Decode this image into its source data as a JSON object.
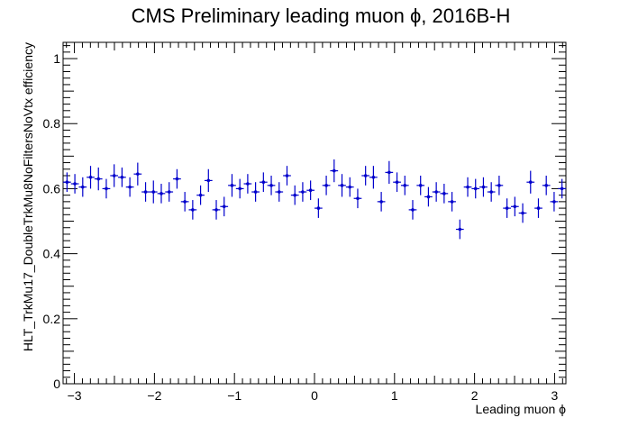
{
  "chart_data": {
    "type": "scatter",
    "title": "CMS Preliminary leading muon ϕ, 2016B-H",
    "xlabel": "Leading muon ϕ",
    "ylabel": "HLT_TrkMu17_DoubleTrkMu8NoFiltersNoVtx efficiency",
    "xlim": [
      -3.1416,
      3.1416
    ],
    "ylim": [
      0,
      1.05
    ],
    "x_ticks": [
      -3,
      -2,
      -1,
      0,
      1,
      2,
      3
    ],
    "x_tick_labels": [
      "−3",
      "−2",
      "−1",
      "0",
      "1",
      "2",
      "3"
    ],
    "y_ticks": [
      0,
      0.2,
      0.4,
      0.6,
      0.8,
      1
    ],
    "y_tick_labels": [
      "0",
      "0.2",
      "0.4",
      "0.6",
      "0.8",
      "1"
    ],
    "grid": false,
    "legend": "none",
    "marker_color": "#0000cc",
    "bin_half_width": 0.0491,
    "x": [
      -3.0925,
      -2.9943,
      -2.8961,
      -2.798,
      -2.6998,
      -2.6016,
      -2.5034,
      -2.4053,
      -2.3071,
      -2.2089,
      -2.1108,
      -2.0126,
      -1.9144,
      -1.8162,
      -1.7181,
      -1.6199,
      -1.5217,
      -1.4235,
      -1.3254,
      -1.2272,
      -1.129,
      -1.0308,
      -0.9327,
      -0.8345,
      -0.7363,
      -0.6381,
      -0.54,
      -0.4418,
      -0.3436,
      -0.2454,
      -0.1473,
      -0.0491,
      0.0491,
      0.1473,
      0.2454,
      0.3436,
      0.4418,
      0.54,
      0.6381,
      0.7363,
      0.8345,
      0.9327,
      1.0308,
      1.129,
      1.2272,
      1.3254,
      1.4235,
      1.5217,
      1.6199,
      1.7181,
      1.8162,
      1.9144,
      2.0126,
      2.1108,
      2.2089,
      2.3071,
      2.4053,
      2.5034,
      2.6016,
      2.6998,
      2.798,
      2.8961,
      2.9943,
      3.0925
    ],
    "y": [
      0.62,
      0.615,
      0.605,
      0.635,
      0.63,
      0.6,
      0.64,
      0.635,
      0.605,
      0.645,
      0.59,
      0.59,
      0.585,
      0.59,
      0.63,
      0.56,
      0.535,
      0.58,
      0.625,
      0.535,
      0.545,
      0.61,
      0.6,
      0.615,
      0.59,
      0.62,
      0.61,
      0.59,
      0.64,
      0.58,
      0.59,
      0.595,
      0.54,
      0.61,
      0.655,
      0.61,
      0.605,
      0.57,
      0.64,
      0.635,
      0.56,
      0.65,
      0.62,
      0.61,
      0.535,
      0.61,
      0.575,
      0.59,
      0.585,
      0.56,
      0.475,
      0.605,
      0.6,
      0.605,
      0.59,
      0.61,
      0.54,
      0.545,
      0.525,
      0.62,
      0.54,
      0.61,
      0.56,
      0.6
    ],
    "y_err": [
      0.03,
      0.03,
      0.03,
      0.035,
      0.035,
      0.03,
      0.035,
      0.03,
      0.03,
      0.035,
      0.03,
      0.035,
      0.03,
      0.03,
      0.03,
      0.03,
      0.03,
      0.03,
      0.035,
      0.03,
      0.03,
      0.035,
      0.03,
      0.03,
      0.03,
      0.03,
      0.03,
      0.03,
      0.03,
      0.03,
      0.03,
      0.03,
      0.03,
      0.03,
      0.035,
      0.035,
      0.03,
      0.03,
      0.03,
      0.035,
      0.03,
      0.035,
      0.03,
      0.03,
      0.03,
      0.03,
      0.03,
      0.03,
      0.03,
      0.03,
      0.03,
      0.03,
      0.03,
      0.03,
      0.03,
      0.03,
      0.03,
      0.03,
      0.03,
      0.035,
      0.03,
      0.03,
      0.03,
      0.03
    ]
  }
}
